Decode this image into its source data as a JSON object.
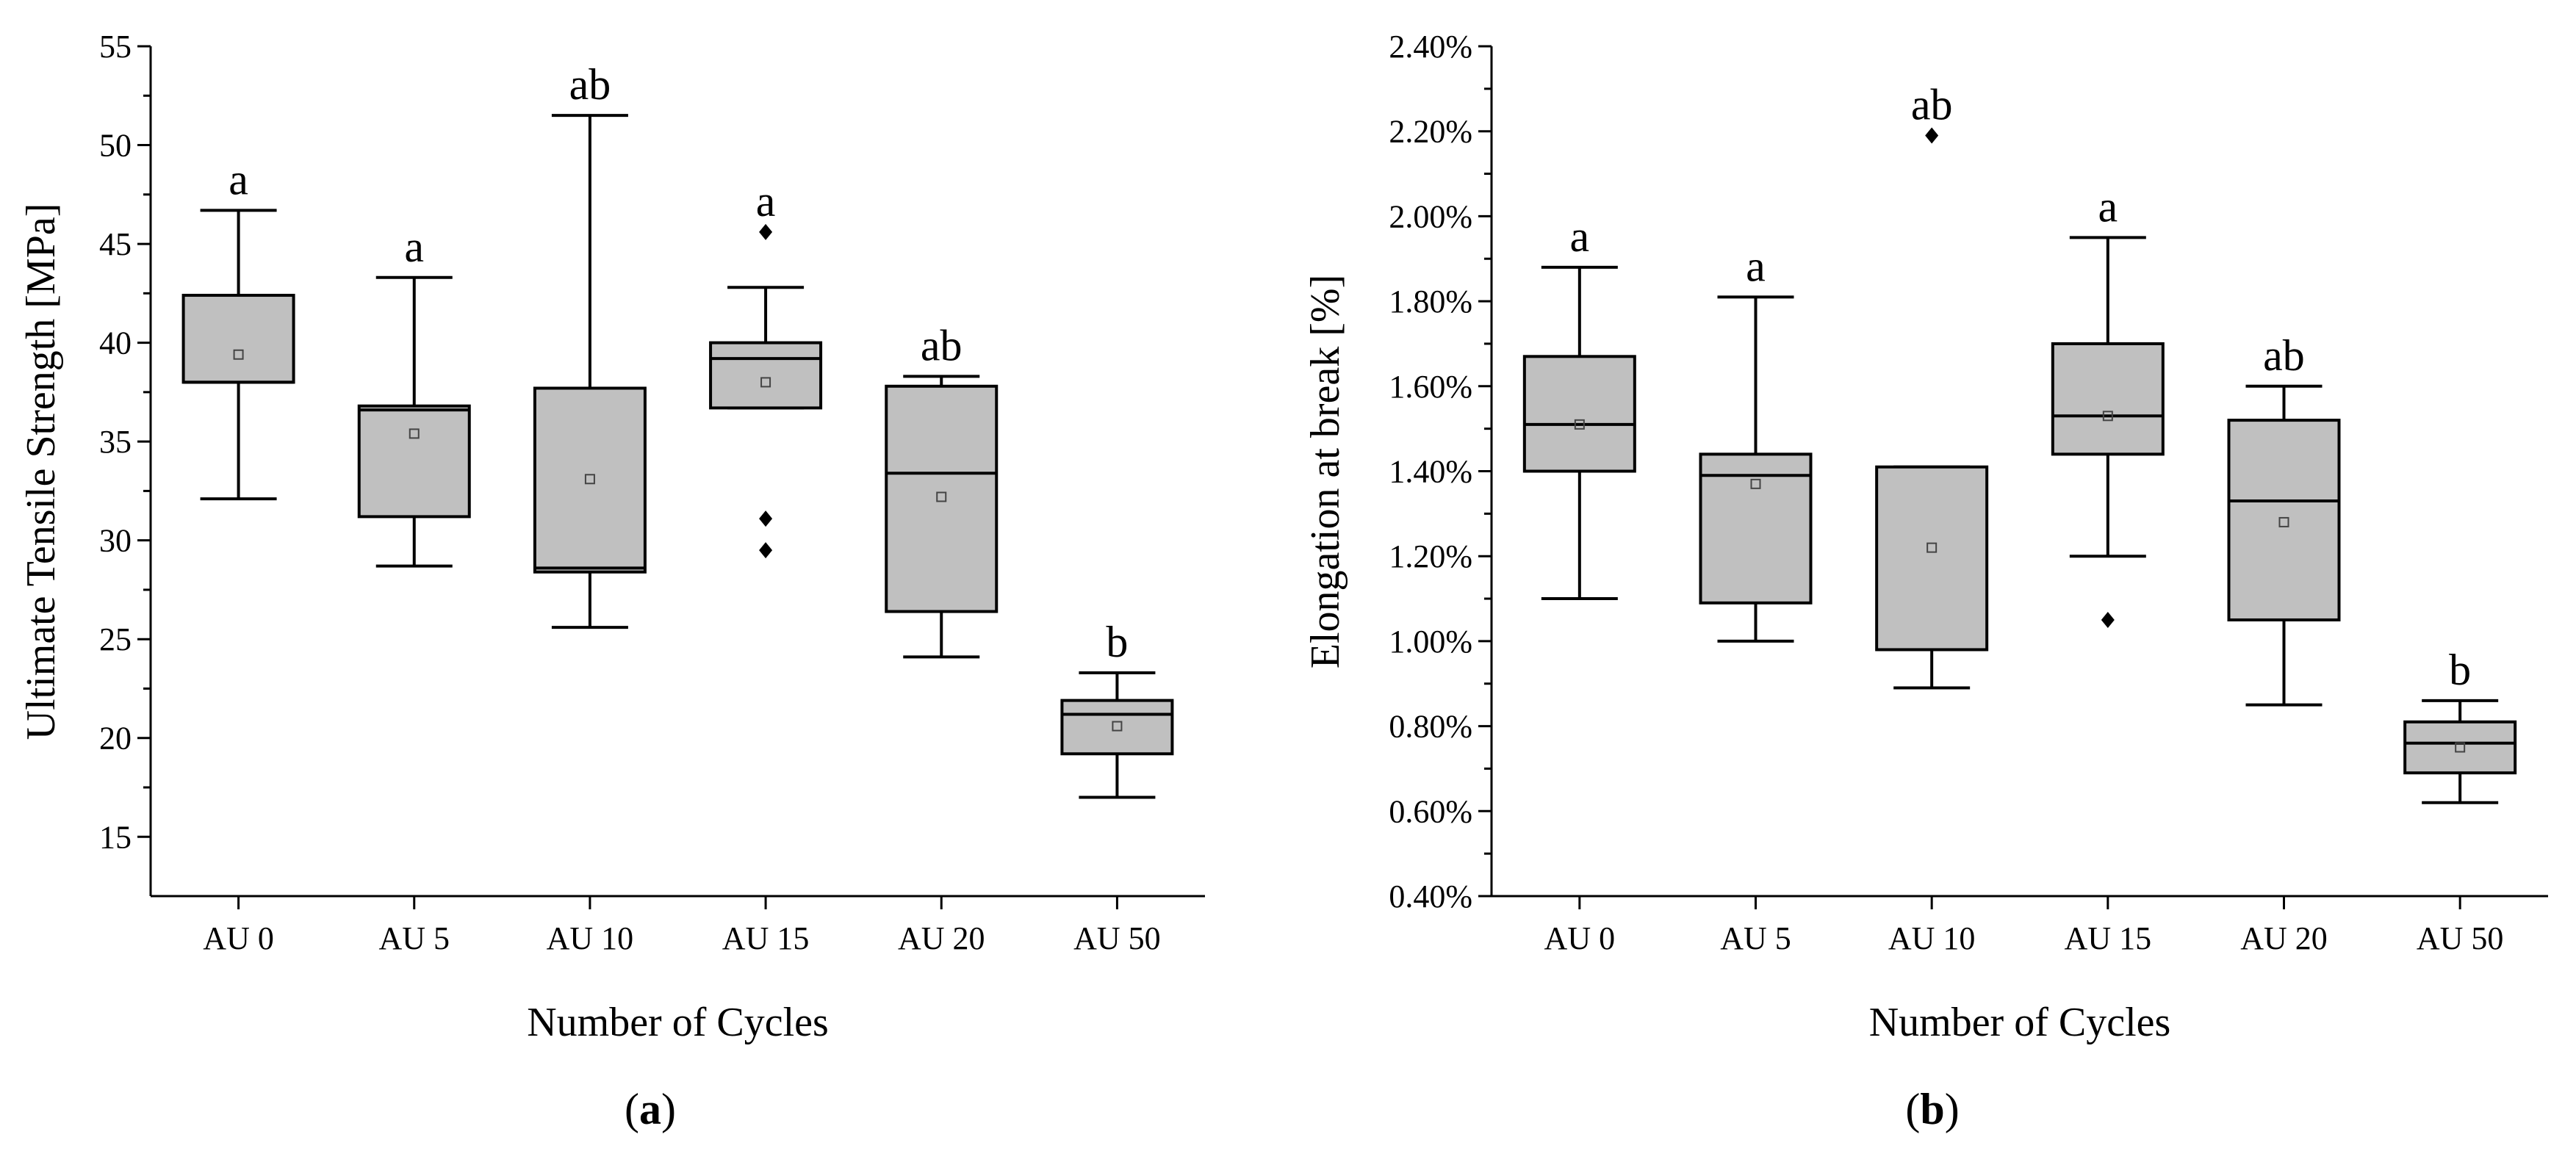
{
  "chart_data": [
    {
      "panel": "a",
      "type": "box",
      "title": "",
      "xlabel": "Number of Cycles",
      "ylabel": "Ultimate Tensile Strength [MPa]",
      "ylim": [
        12,
        55
      ],
      "yticks": [
        15,
        20,
        25,
        30,
        35,
        40,
        45,
        50,
        55
      ],
      "ytick_labels": [
        "15",
        "20",
        "25",
        "30",
        "35",
        "40",
        "45",
        "50",
        "55"
      ],
      "categories": [
        "AU 0",
        "AU 5",
        "AU 10",
        "AU 15",
        "AU 20",
        "AU 50"
      ],
      "boxes": [
        {
          "whisker_low": 32.1,
          "q1": 38.0,
          "median": 38.0,
          "q3": 42.4,
          "whisker_high": 46.7,
          "mean": 39.4,
          "outliers": [],
          "group": "a"
        },
        {
          "whisker_low": 28.7,
          "q1": 31.2,
          "median": 36.6,
          "q3": 36.8,
          "whisker_high": 43.3,
          "mean": 35.4,
          "outliers": [],
          "group": "a"
        },
        {
          "whisker_low": 25.6,
          "q1": 28.4,
          "median": 28.6,
          "q3": 37.7,
          "whisker_high": 51.5,
          "mean": 33.1,
          "outliers": [],
          "group": "ab"
        },
        {
          "whisker_low": 36.7,
          "q1": 36.7,
          "median": 39.2,
          "q3": 40.0,
          "whisker_high": 42.8,
          "mean": 38.0,
          "outliers": [
            45.6,
            31.1,
            29.5
          ],
          "group": "a"
        },
        {
          "whisker_low": 24.1,
          "q1": 26.4,
          "median": 33.4,
          "q3": 37.8,
          "whisker_high": 38.3,
          "mean": 32.2,
          "outliers": [],
          "group": "ab"
        },
        {
          "whisker_low": 17.0,
          "q1": 19.2,
          "median": 21.2,
          "q3": 21.9,
          "whisker_high": 23.3,
          "mean": 20.6,
          "outliers": [],
          "group": "b"
        }
      ],
      "caption_open": "(",
      "caption_letter": "a",
      "caption_close": ")"
    },
    {
      "panel": "b",
      "type": "box",
      "title": "",
      "xlabel": "Number of Cycles",
      "ylabel": "Elongation at break [%]",
      "ylim": [
        0.4,
        2.4
      ],
      "yticks": [
        0.4,
        0.6,
        0.8,
        1.0,
        1.2,
        1.4,
        1.6,
        1.8,
        2.0,
        2.2,
        2.4
      ],
      "ytick_labels": [
        "0.40%",
        "0.60%",
        "0.80%",
        "1.00%",
        "1.20%",
        "1.40%",
        "1.60%",
        "1.80%",
        "2.00%",
        "2.20%",
        "2.40%"
      ],
      "categories": [
        "AU 0",
        "AU 5",
        "AU 10",
        "AU 15",
        "AU 20",
        "AU 50"
      ],
      "boxes": [
        {
          "whisker_low": 1.1,
          "q1": 1.4,
          "median": 1.51,
          "q3": 1.67,
          "whisker_high": 1.88,
          "mean": 1.51,
          "outliers": [],
          "group": "a"
        },
        {
          "whisker_low": 1.0,
          "q1": 1.09,
          "median": 1.39,
          "q3": 1.44,
          "whisker_high": 1.81,
          "mean": 1.37,
          "outliers": [],
          "group": "a"
        },
        {
          "whisker_low": 0.89,
          "q1": 0.98,
          "median": 0.98,
          "q3": 1.41,
          "whisker_high": 1.41,
          "mean": 1.22,
          "outliers": [
            2.19
          ],
          "group": "ab"
        },
        {
          "whisker_low": 1.2,
          "q1": 1.44,
          "median": 1.53,
          "q3": 1.7,
          "whisker_high": 1.95,
          "mean": 1.53,
          "outliers": [
            1.05
          ],
          "group": "a"
        },
        {
          "whisker_low": 0.85,
          "q1": 1.05,
          "median": 1.33,
          "q3": 1.52,
          "whisker_high": 1.6,
          "mean": 1.28,
          "outliers": [],
          "group": "ab"
        },
        {
          "whisker_low": 0.62,
          "q1": 0.69,
          "median": 0.76,
          "q3": 0.81,
          "whisker_high": 0.86,
          "mean": 0.75,
          "outliers": [],
          "group": "b"
        }
      ],
      "caption_open": "(",
      "caption_letter": "b",
      "caption_close": ")"
    }
  ]
}
